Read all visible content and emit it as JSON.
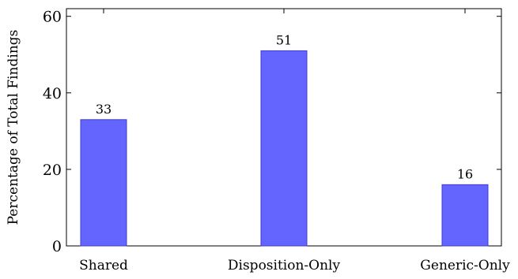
{
  "chart_data": {
    "type": "bar",
    "categories": [
      "Shared",
      "Disposition-Only",
      "Generic-Only"
    ],
    "values": [
      33,
      51,
      16
    ],
    "data_labels": [
      "33",
      "51",
      "16"
    ],
    "title": "",
    "xlabel": "",
    "ylabel": "Percentage of Total Findings",
    "ylim": [
      0,
      62
    ],
    "yticks": [
      0,
      20,
      40,
      60
    ],
    "ytick_labels": [
      "0",
      "20",
      "40",
      "60"
    ],
    "grid": false,
    "legend": "none",
    "colors": {
      "bar_fill": "#6464ff",
      "bar_stroke": "#3c3cd6",
      "axis": "#000000"
    }
  }
}
